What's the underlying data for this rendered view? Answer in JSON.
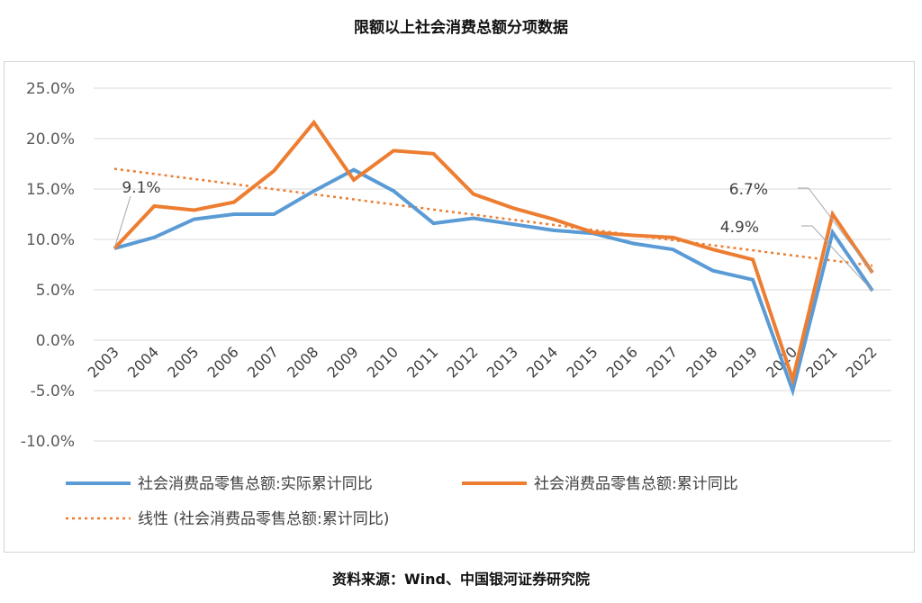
{
  "page": {
    "title": "限额以上社会消费总额分项数据",
    "source": "资料来源：Wind、中国银河证券研究院"
  },
  "colors": {
    "series_actual": "#5b9bd5",
    "series_cumulative": "#ed7d31",
    "trend": "#ed7d31",
    "grid": "#d9d9d9"
  },
  "chart_data": {
    "type": "line",
    "title": "限额以上社会消费总额分项数据",
    "categories": [
      "2003",
      "2004",
      "2005",
      "2006",
      "2007",
      "2008",
      "2009",
      "2010",
      "2011",
      "2012",
      "2013",
      "2014",
      "2015",
      "2016",
      "2017",
      "2018",
      "2019",
      "2020",
      "2021",
      "2022"
    ],
    "y_ticks": [
      "25.0%",
      "20.0%",
      "15.0%",
      "10.0%",
      "5.0%",
      "0.0%",
      "-5.0%",
      "-10.0%"
    ],
    "ylim": [
      -10,
      25
    ],
    "grid": true,
    "legend_position": "bottom",
    "series": [
      {
        "name": "社会消费品零售总额:实际累计同比",
        "values": [
          9.1,
          10.2,
          12.0,
          12.5,
          12.5,
          14.8,
          16.9,
          14.8,
          11.6,
          12.1,
          11.5,
          10.9,
          10.6,
          9.6,
          9.0,
          6.9,
          6.0,
          -5.0,
          10.7,
          4.9
        ]
      },
      {
        "name": "社会消费品零售总额:累计同比",
        "values": [
          9.1,
          13.3,
          12.9,
          13.7,
          16.8,
          21.6,
          15.9,
          18.8,
          18.5,
          14.5,
          13.1,
          12.0,
          10.7,
          10.4,
          10.2,
          9.0,
          8.0,
          -3.9,
          12.5,
          6.7
        ]
      },
      {
        "name": "线性 (社会消费品零售总额:累计同比)",
        "trendline_of": "社会消费品零售总额:累计同比",
        "start_value": 17.0,
        "end_value": 7.4
      }
    ],
    "annotations": [
      {
        "text": "9.1%",
        "category": "2003",
        "value": 9.1
      },
      {
        "text": "6.7%",
        "category": "2022",
        "value": 6.7
      },
      {
        "text": "4.9%",
        "category": "2022",
        "value": 4.9
      }
    ]
  }
}
